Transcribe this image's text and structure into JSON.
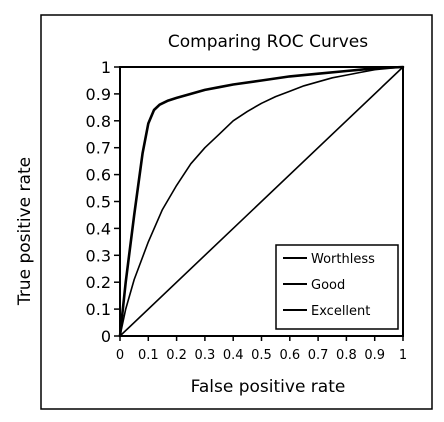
{
  "chart_data": {
    "type": "line",
    "title": "Comparing ROC Curves",
    "xlabel": "False positive rate",
    "ylabel": "True positive rate",
    "xlim": [
      0,
      1
    ],
    "ylim": [
      0,
      1
    ],
    "x_ticks": [
      "0",
      "0.1",
      "0.2",
      "0.3",
      "0.4",
      "0.5",
      "0.6",
      "0.7",
      "0.8",
      "0.9",
      "1"
    ],
    "y_ticks": [
      "0",
      "0.1",
      "0.2",
      "0.3",
      "0.4",
      "0.5",
      "0.6",
      "0.7",
      "0.8",
      "0.9",
      "1"
    ],
    "grid": false,
    "legend_position": "bottom-right",
    "series": [
      {
        "name": "Worthless",
        "x": [
          0,
          1
        ],
        "y": [
          0,
          1
        ]
      },
      {
        "name": "Good",
        "x": [
          0,
          0.02,
          0.05,
          0.1,
          0.15,
          0.2,
          0.25,
          0.3,
          0.35,
          0.4,
          0.45,
          0.5,
          0.55,
          0.6,
          0.65,
          0.7,
          0.75,
          0.8,
          0.85,
          0.9,
          0.95,
          1
        ],
        "y": [
          0,
          0.1,
          0.21,
          0.35,
          0.47,
          0.56,
          0.64,
          0.7,
          0.75,
          0.8,
          0.835,
          0.865,
          0.89,
          0.91,
          0.93,
          0.945,
          0.96,
          0.97,
          0.98,
          0.99,
          0.995,
          1
        ]
      },
      {
        "name": "Excellent",
        "x": [
          0,
          0.02,
          0.05,
          0.08,
          0.1,
          0.12,
          0.14,
          0.17,
          0.2,
          0.25,
          0.3,
          0.35,
          0.4,
          0.5,
          0.6,
          0.7,
          0.8,
          0.85,
          0.9,
          1
        ],
        "y": [
          0,
          0.2,
          0.45,
          0.68,
          0.79,
          0.84,
          0.86,
          0.875,
          0.885,
          0.9,
          0.915,
          0.925,
          0.935,
          0.95,
          0.965,
          0.975,
          0.985,
          0.99,
          0.995,
          1
        ]
      }
    ]
  }
}
